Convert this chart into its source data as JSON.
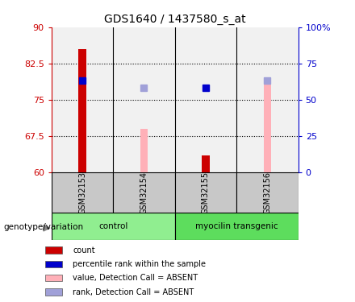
{
  "title": "GDS1640 / 1437580_s_at",
  "samples": [
    "GSM32153",
    "GSM32154",
    "GSM32155",
    "GSM32156"
  ],
  "groups": [
    {
      "name": "control",
      "color": "#90ee90",
      "start": 0,
      "end": 2
    },
    {
      "name": "myocilin transgenic",
      "color": "#5ddd5d",
      "start": 2,
      "end": 4
    }
  ],
  "ylim_left": [
    60,
    90
  ],
  "ylim_right": [
    0,
    100
  ],
  "yticks_left": [
    60,
    67.5,
    75,
    82.5,
    90
  ],
  "yticks_right": [
    0,
    25,
    50,
    75,
    100
  ],
  "ytick_labels_left": [
    "60",
    "67.5",
    "75",
    "82.5",
    "90"
  ],
  "ytick_labels_right": [
    "0",
    "25",
    "50",
    "75",
    "100%"
  ],
  "left_axis_color": "#cc0000",
  "right_axis_color": "#0000cc",
  "count_bars": [
    85.5,
    null,
    63.5,
    null
  ],
  "rank_markers": [
    79.0,
    null,
    77.5,
    null
  ],
  "value_absent_bars": [
    null,
    69.0,
    null,
    79.5
  ],
  "rank_absent_markers": [
    null,
    77.5,
    null,
    79.0
  ],
  "count_color": "#cc0000",
  "rank_color": "#0000cc",
  "value_absent_color": "#ffb0b8",
  "rank_absent_color": "#a0a0d8",
  "bar_width": 0.12,
  "marker_size": 6,
  "legend_items": [
    {
      "label": "count",
      "color": "#cc0000"
    },
    {
      "label": "percentile rank within the sample",
      "color": "#0000cc"
    },
    {
      "label": "value, Detection Call = ABSENT",
      "color": "#ffb0b8"
    },
    {
      "label": "rank, Detection Call = ABSENT",
      "color": "#a0a0d8"
    }
  ],
  "genotype_label": "genotype/variation",
  "sample_area_color": "#c8c8c8",
  "xlabel": ""
}
